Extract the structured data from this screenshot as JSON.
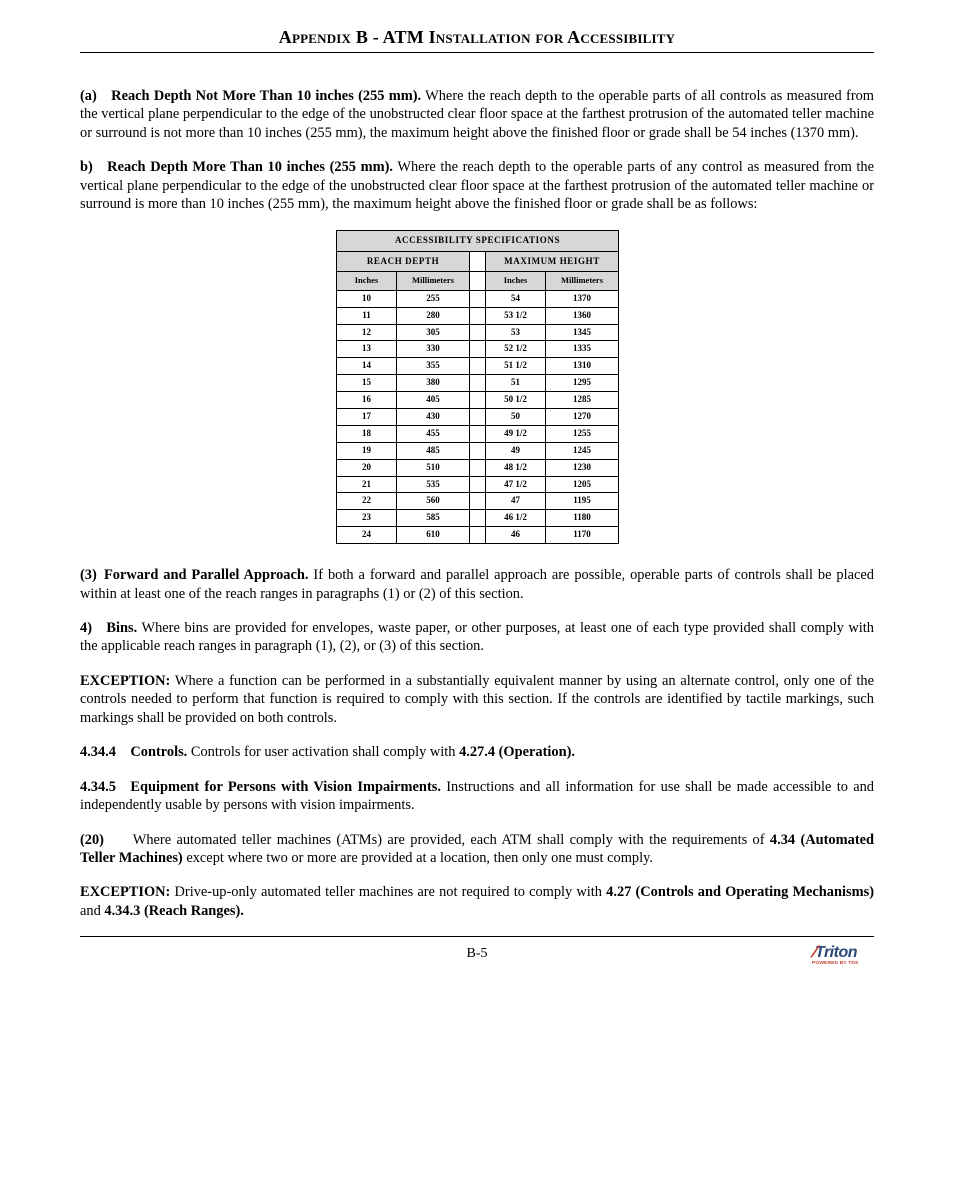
{
  "header": {
    "title": "Appendix B - ATM Installation for Accessibility"
  },
  "para_a": {
    "lead": "(a) Reach Depth Not More Than 10 inches (255 mm).",
    "body": "  Where the reach depth to the operable parts of all controls as measured from the vertical plane perpendicular to the edge of the unobstructed clear floor space at the farthest protrusion of the automated teller machine or surround is not more than 10 inches (255 mm), the maximum height above the finished floor or grade shall be 54 inches (1370 mm)."
  },
  "para_b": {
    "lead": "b) Reach Depth More Than 10 inches (255 mm).",
    "body": "  Where the reach depth to the operable parts of any control as measured from the vertical plane perpendicular to the edge of the unobstructed clear floor space at the farthest protrusion of the automated teller machine or surround is more than 10 inches (255 mm), the maximum height above the finished floor or grade shall be as follows:"
  },
  "table": {
    "title": "ACCESSIBILITY SPECIFICATIONS",
    "left_header": "REACH DEPTH",
    "right_header": "MAXIMUM HEIGHT",
    "unit_in": "Inches",
    "unit_mm": "Millimeters",
    "title_bg": "#d7d7d7",
    "border": "#000000",
    "rows": [
      {
        "rin": "10",
        "rmm": "255",
        "min": "54",
        "mmm": "1370"
      },
      {
        "rin": "11",
        "rmm": "280",
        "min": "53 1/2",
        "mmm": "1360"
      },
      {
        "rin": "12",
        "rmm": "305",
        "min": "53",
        "mmm": "1345"
      },
      {
        "rin": "13",
        "rmm": "330",
        "min": "52 1/2",
        "mmm": "1335"
      },
      {
        "rin": "14",
        "rmm": "355",
        "min": "51 1/2",
        "mmm": "1310"
      },
      {
        "rin": "15",
        "rmm": "380",
        "min": "51",
        "mmm": "1295"
      },
      {
        "rin": "16",
        "rmm": "405",
        "min": "50 1/2",
        "mmm": "1285"
      },
      {
        "rin": "17",
        "rmm": "430",
        "min": "50",
        "mmm": "1270"
      },
      {
        "rin": "18",
        "rmm": "455",
        "min": "49 1/2",
        "mmm": "1255"
      },
      {
        "rin": "19",
        "rmm": "485",
        "min": "49",
        "mmm": "1245"
      },
      {
        "rin": "20",
        "rmm": "510",
        "min": "48 1/2",
        "mmm": "1230"
      },
      {
        "rin": "21",
        "rmm": "535",
        "min": "47 1/2",
        "mmm": "1205"
      },
      {
        "rin": "22",
        "rmm": "560",
        "min": "47",
        "mmm": "1195"
      },
      {
        "rin": "23",
        "rmm": "585",
        "min": "46 1/2",
        "mmm": "1180"
      },
      {
        "rin": "24",
        "rmm": "610",
        "min": "46",
        "mmm": "1170"
      }
    ]
  },
  "para_3": {
    "lead": "(3) Forward and Parallel Approach.",
    "body": "   If both a forward and parallel approach are possible, operable parts of controls shall be placed within at least one of the reach ranges in paragraphs (1) or (2) of this section."
  },
  "para_4": {
    "lead": "4) Bins.",
    "body": "   Where bins are provided for envelopes, waste paper, or other purposes, at least one of each type provided shall comply with the applicable reach ranges in paragraph (1), (2), or (3) of this section."
  },
  "para_ex1": {
    "lead": "EXCEPTION:",
    "body": "  Where a function can be performed in a substantially equivalent manner by using an alternate control, only one of the controls needed to perform that function is required to comply with this section. If the controls are identified by tactile markings, such markings shall be provided on both controls."
  },
  "para_434_4": {
    "lead": "4.34.4 Controls.",
    "body": "   Controls for user activation shall comply with ",
    "bold_tail": "4.27.4 (Operation)."
  },
  "para_434_5": {
    "lead": "4.34.5 Equipment for Persons with Vision Impairments.",
    "body": "   Instructions and all information for use shall be made accessible to and independently usable by persons with vision impairments."
  },
  "para_20": {
    "lead": "(20)",
    "body1": "  Where automated teller machines (ATMs) are provided, each ATM shall comply with the requirements of ",
    "bold_mid": "4.34 (Automated Teller Machines)",
    "body2": " except where two or more are provided at a location, then only one must comply."
  },
  "para_ex2": {
    "lead": "EXCEPTION:",
    "body1": "  Drive-up-only automated teller machines are not required to comply with ",
    "bold_mid": "4.27 (Controls and Operating Mechanisms)",
    "body2": " and ",
    "bold_tail": "4.34.3 (Reach Ranges)."
  },
  "footer": {
    "page_num": "B-5",
    "logo_brand": "Triton",
    "logo_tag": "POWERED BY TDS",
    "logo_brand_color": "#2a4a7a",
    "logo_accent_color": "#c23a2e"
  }
}
